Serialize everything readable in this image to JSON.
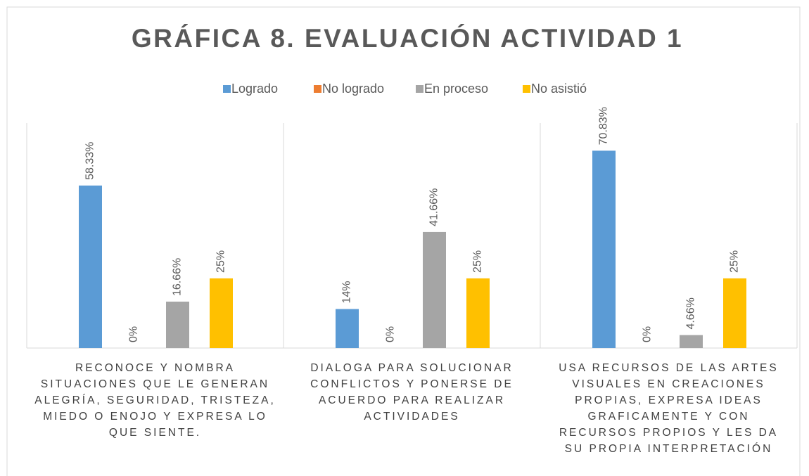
{
  "chart_data": {
    "type": "bar",
    "title": "GRÁFICA 8. EVALUACIÓN ACTIVIDAD 1",
    "categories": [
      "RECONOCE Y NOMBRA SITUACIONES QUE LE GENERAN ALEGRÍA, SEGURIDAD, TRISTEZA, MIEDO O ENOJO Y EXPRESA LO QUE SIENTE.",
      "DIALOGA PARA SOLUCIONAR CONFLICTOS Y PONERSE DE ACUERDO PARA REALIZAR ACTIVIDADES",
      "USA RECURSOS DE LAS ARTES VISUALES EN CREACIONES PROPIAS, EXPRESA IDEAS GRAFICAMENTE Y CON RECURSOS PROPIOS Y LES DA SU PROPIA INTERPRETACIÓN"
    ],
    "series": [
      {
        "name": "Logrado",
        "color": "#5b9bd5",
        "values": [
          58.33,
          14,
          70.83
        ],
        "value_labels": [
          "58.33%",
          "14%",
          "70.83%"
        ]
      },
      {
        "name": "No logrado",
        "color": "#ed7d31",
        "values": [
          0,
          0,
          0
        ],
        "value_labels": [
          "0%",
          "0%",
          "0%"
        ]
      },
      {
        "name": "En proceso",
        "color": "#a5a5a5",
        "values": [
          16.66,
          41.66,
          4.66
        ],
        "value_labels": [
          "16.66%",
          "41.66%",
          "4.66%"
        ]
      },
      {
        "name": "No asistió",
        "color": "#ffc000",
        "values": [
          25,
          25,
          25
        ],
        "value_labels": [
          "25%",
          "25%",
          "25%"
        ]
      }
    ],
    "ylim": [
      0,
      80
    ],
    "legend": "top"
  }
}
